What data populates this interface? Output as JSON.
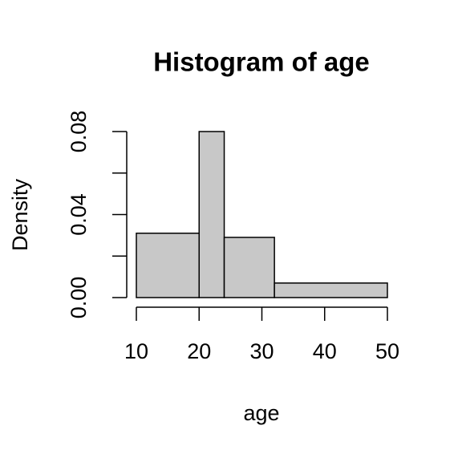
{
  "chart_data": {
    "type": "histogram",
    "title": "Histogram of age",
    "x_label": "age",
    "y_label": "Density",
    "bins": [
      10,
      20,
      24,
      32,
      50
    ],
    "values": [
      0.031,
      0.08,
      0.029,
      0.007
    ],
    "color": "#c8c8c8",
    "xlim": [
      10,
      50
    ],
    "xticks": [
      10,
      20,
      30,
      40,
      50
    ],
    "ylim": [
      0,
      0.08
    ],
    "yticks": [
      {
        "value": 0,
        "label": "0.00"
      },
      {
        "value": 0.02,
        "label": null
      },
      0.04,
      {
        "value": 0.06,
        "label": null
      },
      0.08
    ]
  }
}
